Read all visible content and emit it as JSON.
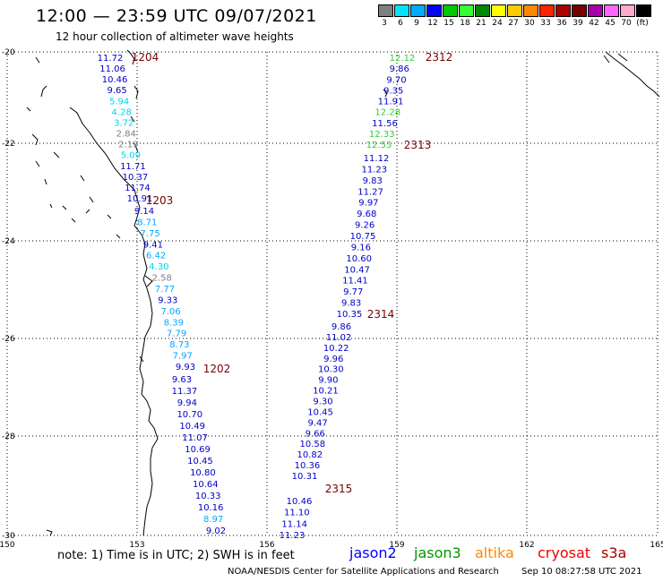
{
  "header": {
    "title": "12:00 — 23:59 UTC 09/07/2021",
    "subtitle": "12 hour collection of altimeter wave heights"
  },
  "colorbar": {
    "colors": [
      "#7f7f7f",
      "#00e5ff",
      "#00aaff",
      "#0000ff",
      "#00c800",
      "#33ff33",
      "#008800",
      "#ffff00",
      "#ffcc00",
      "#ff8800",
      "#ff2200",
      "#aa0000",
      "#770000",
      "#aa00aa",
      "#ff66ff",
      "#ffaacc",
      "#000000"
    ],
    "labels": [
      "3",
      "6",
      "9",
      "12",
      "15",
      "18",
      "21",
      "24",
      "27",
      "30",
      "33",
      "36",
      "39",
      "42",
      "45",
      "70",
      "(ft)"
    ]
  },
  "axes": {
    "lat_labels": [
      "-20",
      "-22",
      "-24",
      "-26",
      "-28",
      "-30"
    ],
    "lon_labels": [
      "150",
      "153",
      "156",
      "159",
      "162",
      "165"
    ]
  },
  "tracks": [
    {
      "id": "1204",
      "label_color": "#770000",
      "points": [
        {
          "v": "11.72",
          "c": "#0000c8"
        },
        {
          "v": "11.06",
          "c": "#0000c8"
        },
        {
          "v": "10.46",
          "c": "#0000c8"
        },
        {
          "v": "9.65",
          "c": "#0000c8"
        },
        {
          "v": "5.94",
          "c": "#00d5ee"
        },
        {
          "v": "4.28",
          "c": "#00d5ee"
        },
        {
          "v": "3.72",
          "c": "#00d5ee"
        },
        {
          "v": "2.84",
          "c": "#7f7f7f"
        },
        {
          "v": "2.19",
          "c": "#7f7f7f"
        },
        {
          "v": "5.09",
          "c": "#00d5ee"
        },
        {
          "v": "11.71",
          "c": "#0000c8"
        },
        {
          "v": "10.37",
          "c": "#0000c8"
        },
        {
          "v": "11.74",
          "c": "#0000c8"
        },
        {
          "v": "10.91",
          "c": "#0000c8"
        }
      ]
    },
    {
      "id": "1203",
      "label_color": "#770000",
      "points": [
        {
          "v": "9.14",
          "c": "#0000c8"
        },
        {
          "v": "8.71",
          "c": "#00aaff"
        },
        {
          "v": "7.75",
          "c": "#00aaff"
        },
        {
          "v": "9.41",
          "c": "#0000c8"
        },
        {
          "v": "6.42",
          "c": "#00aaff"
        },
        {
          "v": "4.30",
          "c": "#00d5ee"
        },
        {
          "v": "2.58",
          "c": "#7f7f7f"
        },
        {
          "v": "7.77",
          "c": "#00aaff"
        },
        {
          "v": "9.33",
          "c": "#0000c8"
        },
        {
          "v": "7.06",
          "c": "#00aaff"
        },
        {
          "v": "8.39",
          "c": "#00aaff"
        },
        {
          "v": "7.79",
          "c": "#00aaff"
        },
        {
          "v": "8.73",
          "c": "#00aaff"
        },
        {
          "v": "7.97",
          "c": "#00aaff"
        },
        {
          "v": "9.93",
          "c": "#0000c8"
        }
      ]
    },
    {
      "id": "1202",
      "label_color": "#770000",
      "points": [
        {
          "v": "9.63",
          "c": "#0000c8"
        },
        {
          "v": "11.37",
          "c": "#0000c8"
        },
        {
          "v": "9.94",
          "c": "#0000c8"
        },
        {
          "v": "10.70",
          "c": "#0000c8"
        },
        {
          "v": "10.49",
          "c": "#0000c8"
        },
        {
          "v": "11.07",
          "c": "#0000c8"
        },
        {
          "v": "10.69",
          "c": "#0000c8"
        },
        {
          "v": "10.45",
          "c": "#0000c8"
        },
        {
          "v": "10.80",
          "c": "#0000c8"
        },
        {
          "v": "10.64",
          "c": "#0000c8"
        },
        {
          "v": "10.33",
          "c": "#0000c8"
        },
        {
          "v": "10.16",
          "c": "#0000c8"
        },
        {
          "v": "8.97",
          "c": "#00aaff"
        },
        {
          "v": "9.02",
          "c": "#0000c8"
        }
      ]
    },
    {
      "id": "2312",
      "label_color": "#770000",
      "points": [
        {
          "v": "12.12",
          "c": "#33cc33"
        },
        {
          "v": "9.86",
          "c": "#0000c8"
        },
        {
          "v": "9.70",
          "c": "#0000c8"
        },
        {
          "v": "9.35",
          "c": "#0000c8"
        },
        {
          "v": "11.91",
          "c": "#0000c8"
        },
        {
          "v": "12.28",
          "c": "#33cc33"
        },
        {
          "v": "11.56",
          "c": "#0000c8"
        },
        {
          "v": "12.33",
          "c": "#33cc33"
        },
        {
          "v": "12.55",
          "c": "#33cc33"
        }
      ]
    },
    {
      "id": "2313",
      "label_color": "#770000",
      "points": [
        {
          "v": "11.12",
          "c": "#0000c8"
        },
        {
          "v": "11.23",
          "c": "#0000c8"
        },
        {
          "v": "9.83",
          "c": "#0000c8"
        },
        {
          "v": "11.27",
          "c": "#0000c8"
        },
        {
          "v": "9.97",
          "c": "#0000c8"
        },
        {
          "v": "9.68",
          "c": "#0000c8"
        },
        {
          "v": "9.26",
          "c": "#0000c8"
        },
        {
          "v": "10.75",
          "c": "#0000c8"
        },
        {
          "v": "9.16",
          "c": "#0000c8"
        },
        {
          "v": "10.60",
          "c": "#0000c8"
        },
        {
          "v": "10.47",
          "c": "#0000c8"
        },
        {
          "v": "11.41",
          "c": "#0000c8"
        },
        {
          "v": "9.77",
          "c": "#0000c8"
        },
        {
          "v": "9.83",
          "c": "#0000c8"
        },
        {
          "v": "10.35",
          "c": "#0000c8"
        }
      ]
    },
    {
      "id": "2314",
      "label_color": "#770000",
      "points": [
        {
          "v": "9.86",
          "c": "#0000c8"
        },
        {
          "v": "11.02",
          "c": "#0000c8"
        },
        {
          "v": "10.22",
          "c": "#0000c8"
        },
        {
          "v": "9.96",
          "c": "#0000c8"
        },
        {
          "v": "10.30",
          "c": "#0000c8"
        },
        {
          "v": "9.90",
          "c": "#0000c8"
        },
        {
          "v": "10.21",
          "c": "#0000c8"
        },
        {
          "v": "9.30",
          "c": "#0000c8"
        },
        {
          "v": "10.45",
          "c": "#0000c8"
        },
        {
          "v": "9.47",
          "c": "#0000c8"
        },
        {
          "v": "9.66",
          "c": "#0000c8"
        },
        {
          "v": "10.58",
          "c": "#0000c8"
        },
        {
          "v": "10.82",
          "c": "#0000c8"
        },
        {
          "v": "10.36",
          "c": "#0000c8"
        },
        {
          "v": "10.31",
          "c": "#0000c8"
        }
      ]
    },
    {
      "id": "2315",
      "label_color": "#770000",
      "points": [
        {
          "v": "10.46",
          "c": "#0000c8"
        },
        {
          "v": "11.10",
          "c": "#0000c8"
        },
        {
          "v": "11.14",
          "c": "#0000c8"
        },
        {
          "v": "11.23",
          "c": "#0000c8"
        }
      ]
    }
  ],
  "footer": {
    "note": "note:  1) Time is in UTC;  2) SWH is in feet",
    "legend": [
      {
        "label": "jason2",
        "color": "#0000ff"
      },
      {
        "label": "jason3",
        "color": "#009900"
      },
      {
        "label": "altika",
        "color": "#ff8800"
      },
      {
        "label": "cryosat",
        "color": "#ee0000"
      },
      {
        "label": "s3a",
        "color": "#aa0000"
      }
    ],
    "credit": "NOAA/NESDIS Center for Satellite Applications and Research",
    "date": "Sep 10 08:27:58 UTC 2021"
  }
}
